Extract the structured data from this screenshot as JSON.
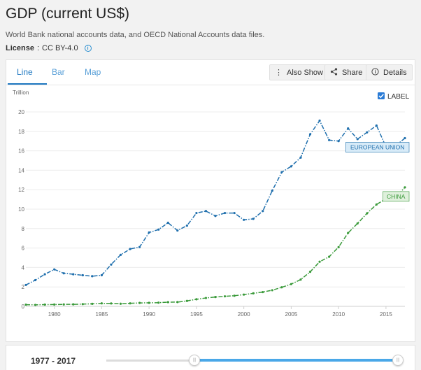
{
  "header": {
    "title": "GDP (current US$)",
    "subtitle": "World Bank national accounts data, and OECD National Accounts data files.",
    "license_label": "License",
    "license_sep": " : ",
    "license_value": "CC BY-4.0"
  },
  "tabs": [
    {
      "label": "Line",
      "active": true
    },
    {
      "label": "Bar",
      "active": false
    },
    {
      "label": "Map",
      "active": false
    }
  ],
  "toolbar": {
    "also_show": "Also Show",
    "share": "Share",
    "details": "Details"
  },
  "label_toggle": {
    "label": "LABEL",
    "checked": true
  },
  "range": {
    "label": "1977 - 2017",
    "start_year": 1977,
    "end_year": 2017,
    "slider_min": 1960,
    "slider_max": 2017
  },
  "chart_data": {
    "type": "line",
    "ylabel": "Trillion",
    "ylim": [
      0,
      20
    ],
    "yticks": [
      0,
      2,
      4,
      6,
      8,
      10,
      12,
      14,
      16,
      18,
      20
    ],
    "xlim": [
      1977,
      2017
    ],
    "xticks": [
      1980,
      1985,
      1990,
      1995,
      2000,
      2005,
      2010,
      2015
    ],
    "grid": true,
    "x": [
      1977,
      1978,
      1979,
      1980,
      1981,
      1982,
      1983,
      1984,
      1985,
      1986,
      1987,
      1988,
      1989,
      1990,
      1991,
      1992,
      1993,
      1994,
      1995,
      1996,
      1997,
      1998,
      1999,
      2000,
      2001,
      2002,
      2003,
      2004,
      2005,
      2006,
      2007,
      2008,
      2009,
      2010,
      2011,
      2012,
      2013,
      2014,
      2015,
      2016,
      2017
    ],
    "series": [
      {
        "name": "EUROPEAN UNION",
        "color": "#1f6fad",
        "values": [
          2.2,
          2.7,
          3.3,
          3.8,
          3.4,
          3.3,
          3.2,
          3.1,
          3.2,
          4.3,
          5.3,
          5.9,
          6.1,
          7.6,
          7.9,
          8.6,
          7.8,
          8.3,
          9.6,
          9.8,
          9.3,
          9.6,
          9.6,
          8.9,
          9.0,
          9.8,
          11.9,
          13.8,
          14.4,
          15.3,
          17.7,
          19.1,
          17.1,
          17.0,
          18.3,
          17.2,
          17.9,
          18.6,
          16.4,
          16.5,
          17.3
        ]
      },
      {
        "name": "CHINA",
        "color": "#3a9a3a",
        "values": [
          0.17,
          0.15,
          0.18,
          0.19,
          0.2,
          0.21,
          0.23,
          0.26,
          0.31,
          0.3,
          0.27,
          0.31,
          0.35,
          0.36,
          0.38,
          0.43,
          0.44,
          0.56,
          0.73,
          0.86,
          0.96,
          1.03,
          1.09,
          1.21,
          1.34,
          1.47,
          1.66,
          1.96,
          2.29,
          2.75,
          3.55,
          4.59,
          5.1,
          6.09,
          7.55,
          8.53,
          9.57,
          10.48,
          11.06,
          11.19,
          12.24
        ]
      }
    ]
  }
}
